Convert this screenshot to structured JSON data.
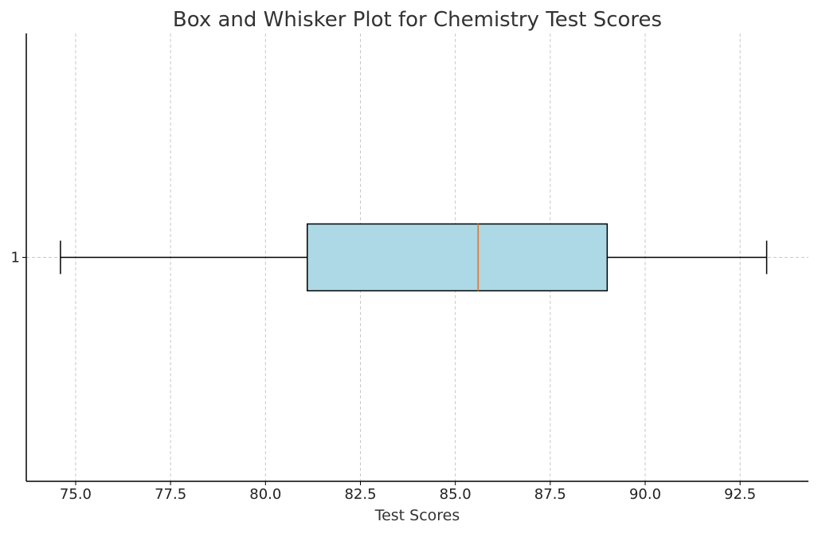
{
  "chart_data": {
    "type": "box",
    "orientation": "horizontal",
    "title": "Box and Whisker Plot for Chemistry Test Scores",
    "xlabel": "Test Scores",
    "ylabel": "",
    "xlim": [
      73.7,
      94.3
    ],
    "xticks": [
      75.0,
      77.5,
      80.0,
      82.5,
      85.0,
      87.5,
      90.0,
      92.5
    ],
    "xtick_labels": [
      "75.0",
      "77.5",
      "80.0",
      "82.5",
      "85.0",
      "87.5",
      "90.0",
      "92.5"
    ],
    "yticks": [
      1
    ],
    "ytick_labels": [
      "1"
    ],
    "grid": true,
    "series": [
      {
        "position": 1,
        "whisker_low": 74.6,
        "q1": 81.1,
        "median": 85.6,
        "q3": 89.0,
        "whisker_high": 93.2,
        "fill_color": "#add8e6",
        "median_color": "#e07b39",
        "edge_color": "#000000"
      }
    ]
  }
}
